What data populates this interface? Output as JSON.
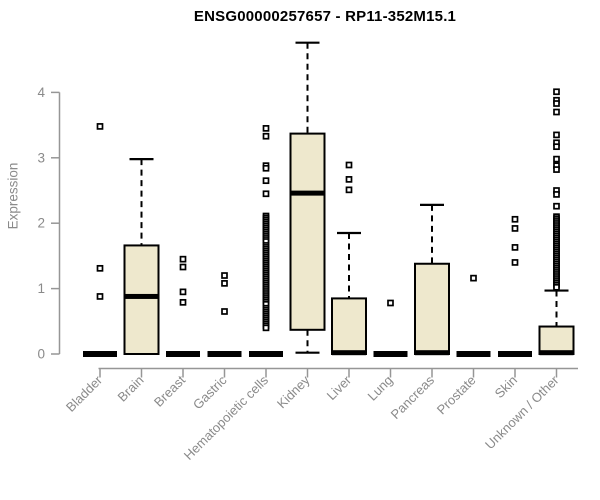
{
  "chart_data": {
    "type": "boxplot",
    "title": "ENSG00000257657 - RP11-352M15.1",
    "ylabel": "Expression",
    "xlabel": "",
    "ylim": [
      0,
      4
    ],
    "yticks": [
      0,
      1,
      2,
      3,
      4
    ],
    "grid": false,
    "legend": "none",
    "colors": {
      "box_fill": "#EEE8CD",
      "box_border": "#000000",
      "median": "#000000",
      "axis": "#969696",
      "tick_text": "#8a8a8a",
      "title_text": "#000000"
    },
    "categories": [
      "Bladder",
      "Brain",
      "Breast",
      "Gastric",
      "Hematopoietic cells",
      "Kidney",
      "Liver",
      "Lung",
      "Pancreas",
      "Prostate",
      "Skin",
      "Unknown / Other"
    ],
    "series": [
      {
        "category": "Bladder",
        "q1": 0,
        "median": 0,
        "q3": 0,
        "whisker_low": 0,
        "whisker_high": 0,
        "outliers": [
          3.48,
          1.31,
          0.88
        ]
      },
      {
        "category": "Brain",
        "q1": 0,
        "median": 0.88,
        "q3": 1.66,
        "whisker_low": 0,
        "whisker_high": 2.98,
        "outliers": []
      },
      {
        "category": "Breast",
        "q1": 0,
        "median": 0,
        "q3": 0,
        "whisker_low": 0,
        "whisker_high": 0,
        "outliers": [
          1.45,
          1.33,
          0.95,
          0.79
        ]
      },
      {
        "category": "Gastric",
        "q1": 0,
        "median": 0,
        "q3": 0,
        "whisker_low": 0,
        "whisker_high": 0,
        "outliers": [
          1.2,
          1.08,
          0.65
        ]
      },
      {
        "category": "Hematopoietic cells",
        "q1": 0,
        "median": 0,
        "q3": 0,
        "whisker_low": 0,
        "whisker_high": 0,
        "outliers": [
          3.45,
          3.33,
          2.88,
          2.84,
          2.65,
          2.45,
          2.11,
          2.08,
          2.05,
          2.02,
          1.99,
          1.96,
          1.93,
          1.9,
          1.87,
          1.84,
          1.81,
          1.78,
          1.75,
          1.72,
          1.66,
          1.63,
          1.6,
          1.57,
          1.54,
          1.51,
          1.48,
          1.45,
          1.42,
          1.39,
          1.36,
          1.33,
          1.3,
          1.27,
          1.24,
          1.21,
          1.18,
          1.15,
          1.12,
          1.09,
          1.06,
          1.03,
          1.0,
          0.97,
          0.94,
          0.91,
          0.88,
          0.85,
          0.82,
          0.79,
          0.76,
          0.7,
          0.67,
          0.64,
          0.61,
          0.58,
          0.55,
          0.52,
          0.49,
          0.46,
          0.43,
          0.4
        ]
      },
      {
        "category": "Kidney",
        "q1": 0.37,
        "median": 2.46,
        "q3": 3.37,
        "whisker_low": 0.02,
        "whisker_high": 4.76,
        "outliers": []
      },
      {
        "category": "Liver",
        "q1": 0,
        "median": 0.02,
        "q3": 0.85,
        "whisker_low": 0,
        "whisker_high": 1.85,
        "outliers": [
          2.89,
          2.67,
          2.51
        ]
      },
      {
        "category": "Lung",
        "q1": 0,
        "median": 0,
        "q3": 0,
        "whisker_low": 0,
        "whisker_high": 0,
        "outliers": [
          0.78
        ]
      },
      {
        "category": "Pancreas",
        "q1": 0,
        "median": 0.02,
        "q3": 1.38,
        "whisker_low": 0,
        "whisker_high": 2.28,
        "outliers": []
      },
      {
        "category": "Prostate",
        "q1": 0,
        "median": 0,
        "q3": 0,
        "whisker_low": 0,
        "whisker_high": 0,
        "outliers": [
          1.16
        ]
      },
      {
        "category": "Skin",
        "q1": 0,
        "median": 0,
        "q3": 0,
        "whisker_low": 0,
        "whisker_high": 0,
        "outliers": [
          2.06,
          1.92,
          1.63,
          1.4
        ]
      },
      {
        "category": "Unknown / Other",
        "q1": 0,
        "median": 0.02,
        "q3": 0.42,
        "whisker_low": 0,
        "whisker_high": 0.97,
        "outliers": [
          4.01,
          3.88,
          3.83,
          3.7,
          3.35,
          3.23,
          3.17,
          2.98,
          2.88,
          2.82,
          2.5,
          2.44,
          2.26,
          2.1,
          2.07,
          2.04,
          2.01,
          1.98,
          1.95,
          1.92,
          1.89,
          1.86,
          1.83,
          1.8,
          1.77,
          1.74,
          1.71,
          1.68,
          1.65,
          1.62,
          1.59,
          1.56,
          1.53,
          1.5,
          1.47,
          1.44,
          1.41,
          1.38,
          1.35,
          1.32,
          1.29,
          1.26,
          1.23,
          1.2,
          1.17,
          1.14,
          1.11,
          1.08,
          1.05,
          1.02
        ]
      }
    ]
  }
}
